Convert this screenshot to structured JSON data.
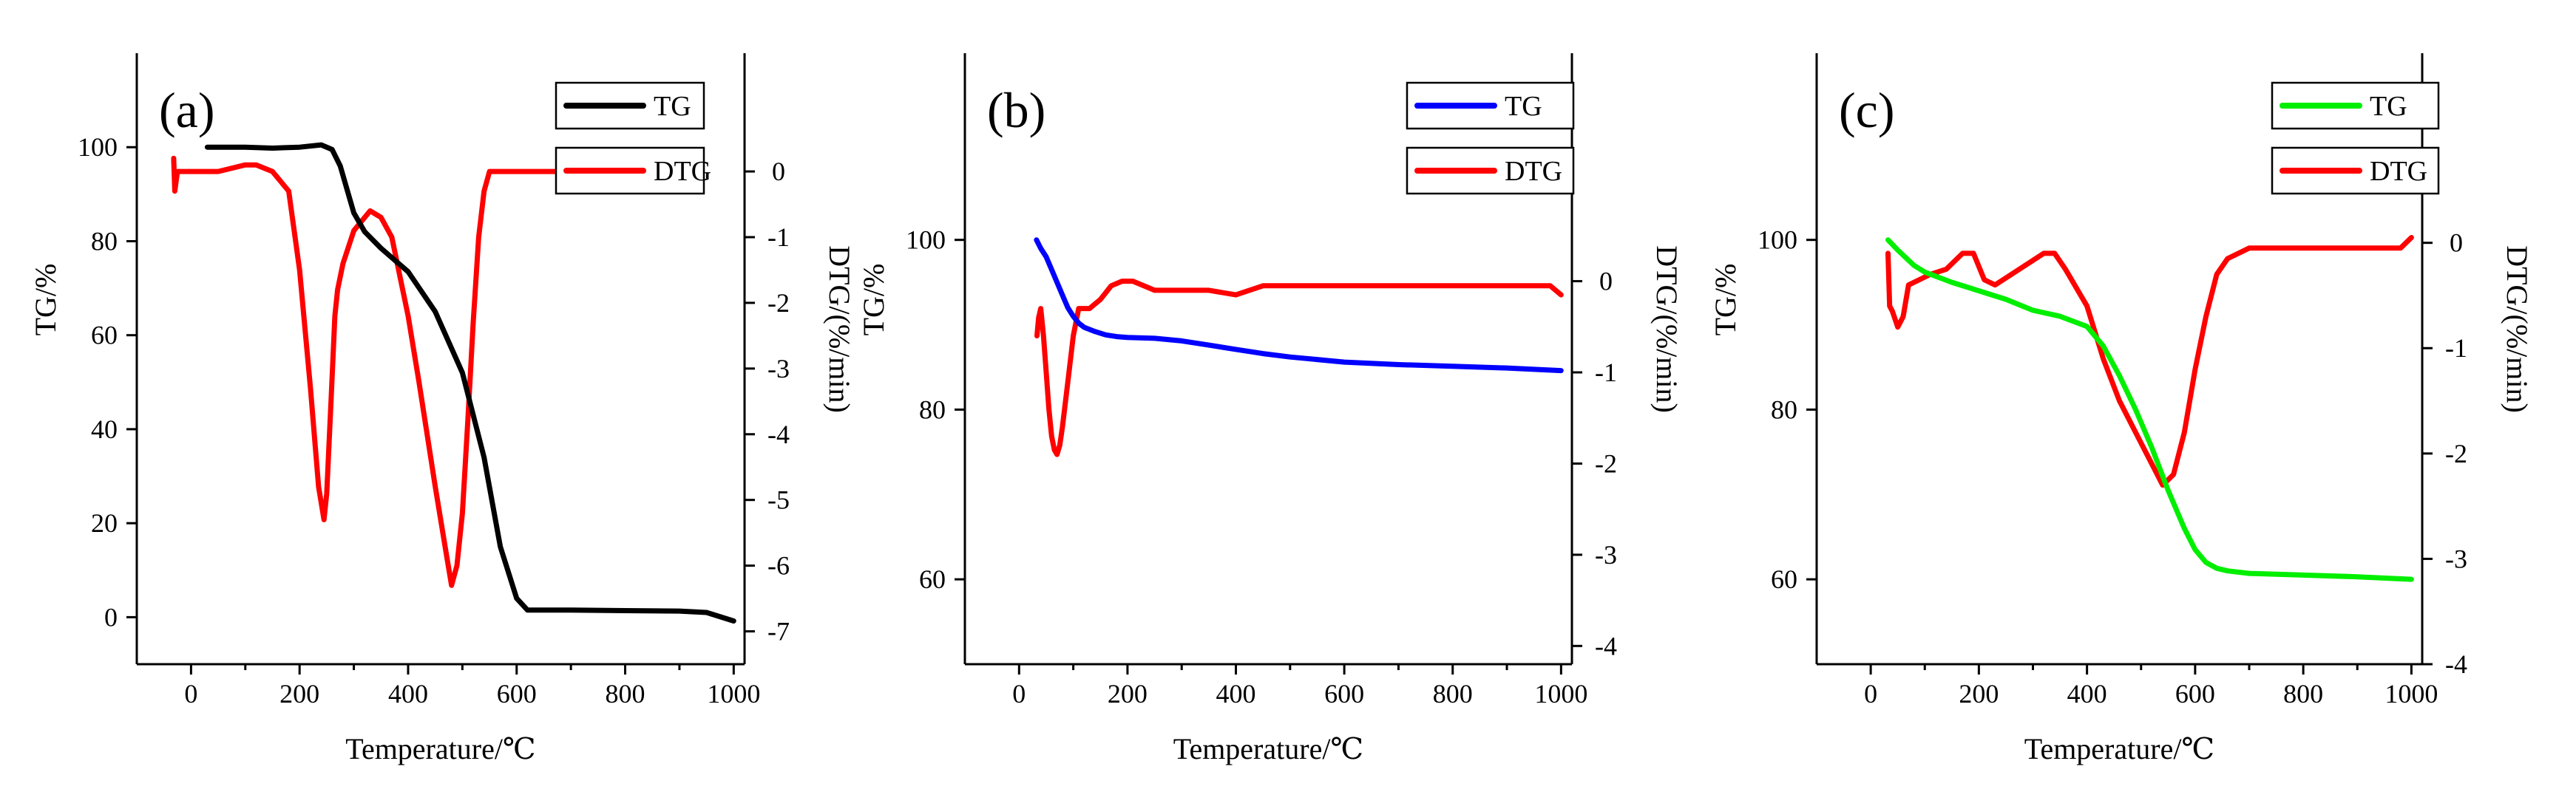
{
  "chart_data": [
    {
      "type": "line",
      "panel_label": "(a)",
      "xlabel": "Temperature/℃",
      "ylabel_left": "TG/%",
      "ylabel_right": "DTG/(%/min)",
      "xlim": [
        -100,
        1020
      ],
      "xticks": [
        0,
        200,
        400,
        600,
        800,
        1000
      ],
      "ylim_left": [
        -10,
        120
      ],
      "yticks_left": [
        0,
        20,
        40,
        60,
        80,
        100
      ],
      "ylim_right": [
        -7.5,
        1.8
      ],
      "yticks_right": [
        0,
        -1,
        -2,
        -3,
        -4,
        -5,
        -6,
        -7
      ],
      "series": [
        {
          "name": "TG",
          "axis": "left",
          "color": "#000000",
          "x": [
            30,
            100,
            150,
            200,
            240,
            260,
            275,
            290,
            300,
            320,
            350,
            400,
            450,
            500,
            540,
            570,
            600,
            620,
            700,
            800,
            900,
            950,
            1000
          ],
          "y": [
            100,
            100,
            99.8,
            100,
            100.5,
            99.5,
            96,
            90,
            86,
            82,
            78.5,
            73.5,
            65,
            52,
            34,
            15,
            4,
            1.5,
            1.5,
            1.4,
            1.3,
            1.0,
            -0.8
          ]
        },
        {
          "name": "DTG",
          "axis": "right",
          "color": "#ff0000",
          "x": [
            -32,
            -30,
            -25,
            -20,
            0,
            50,
            100,
            120,
            150,
            180,
            200,
            220,
            235,
            245,
            250,
            258,
            265,
            270,
            280,
            300,
            330,
            350,
            370,
            400,
            420,
            450,
            470,
            480,
            490,
            500,
            510,
            520,
            530,
            540,
            550,
            600,
            700,
            800,
            850,
            880,
            900,
            920,
            935
          ],
          "y": [
            0.2,
            -0.3,
            0.0,
            0.0,
            0.0,
            0.0,
            0.1,
            0.1,
            0.0,
            -0.3,
            -1.5,
            -3.3,
            -4.8,
            -5.3,
            -4.9,
            -3.5,
            -2.2,
            -1.8,
            -1.4,
            -0.9,
            -0.6,
            -0.7,
            -1.0,
            -2.2,
            -3.2,
            -4.8,
            -5.8,
            -6.3,
            -6.0,
            -5.2,
            -3.8,
            -2.3,
            -1.0,
            -0.3,
            0.0,
            0.0,
            0.0,
            0.0,
            -0.1,
            -0.1,
            -0.1,
            -0.1,
            0.1
          ]
        }
      ]
    },
    {
      "type": "line",
      "panel_label": "(b)",
      "xlabel": "Temperature/℃",
      "ylabel_left": "TG/%",
      "ylabel_right": "DTG/(%/min)",
      "xlim": [
        -100,
        1020
      ],
      "xticks": [
        0,
        200,
        400,
        600,
        800,
        1000
      ],
      "ylim_left": [
        50,
        122
      ],
      "yticks_left": [
        60,
        80,
        100
      ],
      "ylim_right": [
        -4.2,
        2.5
      ],
      "yticks_right": [
        0,
        -1,
        -2,
        -3,
        -4
      ],
      "series": [
        {
          "name": "TG",
          "axis": "left",
          "color": "#0000ff",
          "x": [
            32,
            40,
            50,
            60,
            70,
            80,
            90,
            100,
            110,
            120,
            140,
            160,
            180,
            200,
            250,
            300,
            350,
            400,
            450,
            500,
            600,
            700,
            800,
            900,
            1000
          ],
          "y": [
            100,
            99,
            98,
            96.5,
            95,
            93.5,
            92,
            91,
            90.2,
            89.7,
            89.2,
            88.8,
            88.6,
            88.5,
            88.4,
            88.1,
            87.6,
            87.1,
            86.6,
            86.2,
            85.6,
            85.3,
            85.1,
            84.9,
            84.6
          ]
        },
        {
          "name": "DTG",
          "axis": "right",
          "color": "#ff0000",
          "x": [
            33,
            36,
            40,
            45,
            50,
            55,
            60,
            65,
            70,
            75,
            80,
            90,
            100,
            110,
            120,
            130,
            150,
            170,
            190,
            210,
            250,
            300,
            350,
            400,
            450,
            500,
            600,
            700,
            800,
            900,
            980,
            990,
            1000
          ],
          "y": [
            -0.6,
            -0.4,
            -0.3,
            -0.6,
            -1.0,
            -1.4,
            -1.7,
            -1.85,
            -1.9,
            -1.8,
            -1.6,
            -1.1,
            -0.6,
            -0.3,
            -0.3,
            -0.3,
            -0.2,
            -0.05,
            0.0,
            0.0,
            -0.1,
            -0.1,
            -0.1,
            -0.15,
            -0.05,
            -0.05,
            -0.05,
            -0.05,
            -0.05,
            -0.05,
            -0.05,
            -0.1,
            -0.15
          ]
        }
      ]
    },
    {
      "type": "line",
      "panel_label": "(c)",
      "xlabel": "Temperature/℃",
      "ylabel_left": "TG/%",
      "ylabel_right": "DTG/(%/min)",
      "xlim": [
        -100,
        1020
      ],
      "xticks": [
        0,
        200,
        400,
        600,
        800,
        1000
      ],
      "ylim_left": [
        50,
        122
      ],
      "yticks_left": [
        60,
        80,
        100
      ],
      "ylim_right": [
        -4.0,
        1.8
      ],
      "yticks_right": [
        0,
        -1,
        -2,
        -3,
        -4
      ],
      "series": [
        {
          "name": "TG",
          "axis": "left",
          "color": "#00ee00",
          "x": [
            32,
            50,
            80,
            100,
            150,
            200,
            250,
            300,
            350,
            400,
            430,
            460,
            490,
            520,
            550,
            580,
            600,
            620,
            640,
            660,
            700,
            800,
            900,
            1000
          ],
          "y": [
            100,
            98.8,
            97,
            96.2,
            95,
            94,
            93,
            91.7,
            91,
            89.8,
            87.5,
            84,
            80,
            75.5,
            70.5,
            66,
            63.5,
            62,
            61.3,
            61,
            60.7,
            60.5,
            60.3,
            60
          ]
        },
        {
          "name": "DTG",
          "axis": "right",
          "color": "#ff0000",
          "x": [
            32,
            35,
            40,
            50,
            60,
            70,
            90,
            110,
            140,
            170,
            190,
            210,
            230,
            260,
            290,
            320,
            340,
            360,
            400,
            430,
            460,
            490,
            520,
            540,
            560,
            580,
            600,
            620,
            640,
            660,
            700,
            800,
            900,
            950,
            970,
            980,
            1000
          ],
          "y": [
            -0.1,
            -0.6,
            -0.65,
            -0.8,
            -0.7,
            -0.4,
            -0.35,
            -0.3,
            -0.25,
            -0.1,
            -0.1,
            -0.35,
            -0.4,
            -0.3,
            -0.2,
            -0.1,
            -0.1,
            -0.25,
            -0.6,
            -1.1,
            -1.5,
            -1.8,
            -2.1,
            -2.3,
            -2.2,
            -1.8,
            -1.2,
            -0.7,
            -0.3,
            -0.15,
            -0.05,
            -0.05,
            -0.05,
            -0.05,
            -0.05,
            -0.05,
            0.05
          ]
        }
      ]
    }
  ]
}
